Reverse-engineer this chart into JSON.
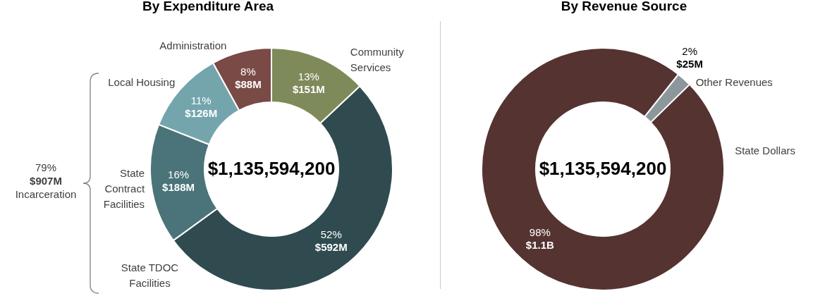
{
  "chart_data": [
    {
      "type": "donut",
      "title": "By Expenditure Area",
      "categories": [
        "Community Services",
        "State TDOC Facilities",
        "State Contract Facilities",
        "Local Housing",
        "Administration"
      ],
      "values": [
        13,
        52,
        16,
        11,
        8
      ],
      "colors": [
        "#7f8a5a",
        "#2f4b4f",
        "#4a7479",
        "#74a5ad",
        "#7a4a46"
      ],
      "value_labels": [
        "13% $151M",
        "52% $592M",
        "16% $188M",
        "11% $126M",
        "8% $88M"
      ],
      "annotations": [
        "$1,135,594,200",
        "79% $907M Incarceration"
      ]
    },
    {
      "type": "donut",
      "title": "By Revenue Source",
      "categories": [
        "Other Revenues",
        "State Dollars"
      ],
      "values": [
        2,
        98
      ],
      "colors": [
        "#8c979c",
        "#553331"
      ],
      "value_labels": [
        "2% $25M",
        "98% $1.1B"
      ],
      "annotations": [
        "$1,135,594,200"
      ]
    }
  ]
}
